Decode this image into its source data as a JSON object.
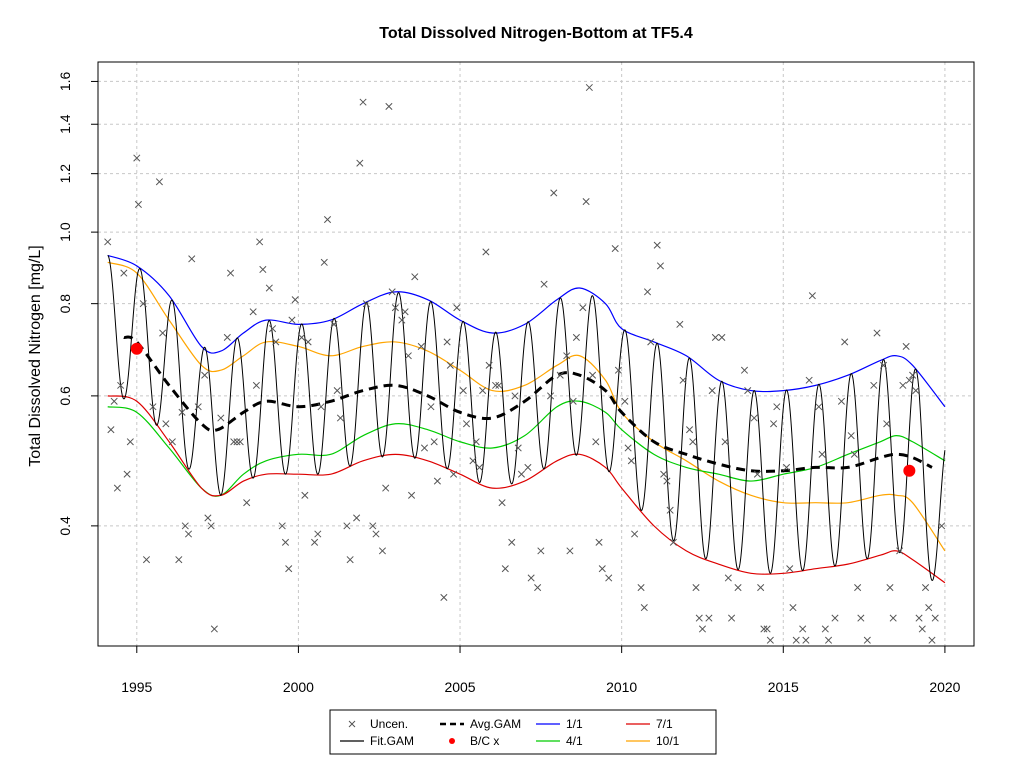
{
  "chart_data": {
    "type": "line",
    "title": "Total Dissolved Nitrogen-Bottom at TF5.4",
    "xlabel": "",
    "ylabel": "Total Dissolved Nitrogen [mg/L]",
    "y_scale": "log",
    "xlim": [
      1993.8,
      2020.9
    ],
    "ylim": [
      0.275,
      1.7
    ],
    "x_ticks": [
      1995,
      2000,
      2005,
      2010,
      2015,
      2020
    ],
    "y_ticks": [
      0.4,
      0.6,
      0.8,
      1.0,
      1.2,
      1.4,
      1.6
    ],
    "grid": true,
    "legend_position": "bottom",
    "colors": {
      "uncen": "#555555",
      "fit": "#000000",
      "avg": "#000000",
      "bc": "#ff0000",
      "p1": "#0000ff",
      "p4": "#00cc00",
      "p7": "#dd0000",
      "p10": "#ffa500"
    },
    "legend": [
      {
        "key": "uncen",
        "label": "Uncen."
      },
      {
        "key": "fit",
        "label": "Fit.GAM"
      },
      {
        "key": "avg",
        "label": "Avg.GAM"
      },
      {
        "key": "bc",
        "label": "B/C x"
      },
      {
        "key": "p1",
        "label": "1/1"
      },
      {
        "key": "p4",
        "label": "4/1"
      },
      {
        "key": "p7",
        "label": "7/1"
      },
      {
        "key": "p10",
        "label": "10/1"
      }
    ],
    "series": [
      {
        "key": "p1",
        "name": "1/1",
        "x": [
          1994.1,
          1995.0,
          1996.0,
          1997.0,
          1997.6,
          1998.3,
          1999.0,
          2000.0,
          2001.0,
          2002.0,
          2003.0,
          2004.0,
          2005.0,
          2006.0,
          2007.0,
          2008.0,
          2008.7,
          2009.5,
          2010.0,
          2011.0,
          2012.0,
          2013.0,
          2014.0,
          2015.0,
          2016.0,
          2017.0,
          2018.0,
          2018.5,
          2019.0,
          2020.0
        ],
        "y": [
          0.93,
          0.9,
          0.82,
          0.7,
          0.69,
          0.73,
          0.76,
          0.75,
          0.76,
          0.8,
          0.83,
          0.81,
          0.76,
          0.73,
          0.75,
          0.81,
          0.84,
          0.8,
          0.74,
          0.71,
          0.68,
          0.63,
          0.61,
          0.61,
          0.62,
          0.64,
          0.67,
          0.68,
          0.66,
          0.58
        ]
      },
      {
        "key": "p10",
        "name": "10/1",
        "x": [
          1994.1,
          1995.0,
          1996.0,
          1997.0,
          1997.6,
          1998.3,
          1999.0,
          2000.0,
          2001.0,
          2002.0,
          2003.0,
          2004.0,
          2005.0,
          2006.0,
          2007.0,
          2008.0,
          2008.7,
          2009.5,
          2010.0,
          2011.0,
          2012.0,
          2013.0,
          2014.0,
          2015.0,
          2016.0,
          2017.0,
          2018.0,
          2018.5,
          2019.0,
          2020.0
        ],
        "y": [
          0.91,
          0.88,
          0.76,
          0.66,
          0.65,
          0.68,
          0.71,
          0.7,
          0.68,
          0.7,
          0.71,
          0.69,
          0.65,
          0.61,
          0.62,
          0.66,
          0.68,
          0.63,
          0.57,
          0.52,
          0.49,
          0.46,
          0.44,
          0.43,
          0.43,
          0.43,
          0.44,
          0.44,
          0.43,
          0.37
        ]
      },
      {
        "key": "p4",
        "name": "4/1",
        "x": [
          1994.1,
          1995.0,
          1996.0,
          1997.0,
          1997.6,
          1998.3,
          1999.0,
          2000.0,
          2001.0,
          2002.0,
          2003.0,
          2004.0,
          2005.0,
          2006.0,
          2007.0,
          2008.0,
          2008.7,
          2009.5,
          2010.0,
          2011.0,
          2012.0,
          2013.0,
          2014.0,
          2015.0,
          2016.0,
          2017.0,
          2018.0,
          2018.5,
          2019.0,
          2020.0
        ],
        "y": [
          0.58,
          0.57,
          0.51,
          0.45,
          0.44,
          0.47,
          0.49,
          0.5,
          0.5,
          0.53,
          0.55,
          0.54,
          0.52,
          0.51,
          0.53,
          0.58,
          0.59,
          0.57,
          0.54,
          0.5,
          0.48,
          0.47,
          0.46,
          0.47,
          0.48,
          0.5,
          0.52,
          0.53,
          0.52,
          0.49
        ]
      },
      {
        "key": "p7",
        "name": "7/1",
        "x": [
          1994.1,
          1995.0,
          1996.0,
          1997.0,
          1997.6,
          1998.3,
          1999.0,
          2000.0,
          2001.0,
          2002.0,
          2003.0,
          2004.0,
          2005.0,
          2006.0,
          2007.0,
          2008.0,
          2008.7,
          2009.5,
          2010.0,
          2011.0,
          2012.0,
          2013.0,
          2014.0,
          2015.0,
          2016.0,
          2017.0,
          2018.0,
          2018.5,
          2019.0,
          2020.0
        ],
        "y": [
          0.6,
          0.59,
          0.52,
          0.45,
          0.44,
          0.46,
          0.47,
          0.47,
          0.47,
          0.49,
          0.5,
          0.49,
          0.47,
          0.45,
          0.46,
          0.49,
          0.5,
          0.48,
          0.45,
          0.4,
          0.37,
          0.355,
          0.345,
          0.345,
          0.35,
          0.355,
          0.365,
          0.37,
          0.36,
          0.335
        ]
      },
      {
        "key": "avg",
        "name": "Avg.GAM",
        "dashed": true,
        "x": [
          1994.6,
          1995.0,
          1996.0,
          1997.0,
          1997.5,
          1998.3,
          1999.0,
          2000.0,
          2001.0,
          2002.0,
          2003.0,
          2004.0,
          2005.0,
          2006.0,
          2007.0,
          2008.0,
          2008.7,
          2009.5,
          2010.0,
          2011.0,
          2012.0,
          2013.0,
          2014.0,
          2015.0,
          2016.0,
          2017.0,
          2018.0,
          2018.5,
          2019.0,
          2019.6
        ],
        "y": [
          0.72,
          0.71,
          0.62,
          0.55,
          0.54,
          0.57,
          0.59,
          0.58,
          0.59,
          0.61,
          0.62,
          0.6,
          0.57,
          0.56,
          0.59,
          0.64,
          0.64,
          0.61,
          0.57,
          0.52,
          0.5,
          0.485,
          0.475,
          0.475,
          0.48,
          0.48,
          0.495,
          0.5,
          0.495,
          0.48
        ]
      }
    ],
    "fit_gam": {
      "name": "Fit.GAM",
      "x_start": 1994.1,
      "x_end": 2020.0,
      "annual_peak_fraction": 0.1,
      "upper_key": "p1",
      "lower_key": "p7",
      "end_upper": 0.53,
      "end_lower": 0.33
    },
    "bc_points": [
      {
        "x": 1995.0,
        "y": 0.695
      },
      {
        "x": 2018.9,
        "y": 0.475
      }
    ],
    "observations": [
      {
        "x": 1994.1,
        "y": 0.97
      },
      {
        "x": 1994.2,
        "y": 0.54
      },
      {
        "x": 1994.3,
        "y": 0.59
      },
      {
        "x": 1994.4,
        "y": 0.45
      },
      {
        "x": 1994.5,
        "y": 0.62
      },
      {
        "x": 1994.6,
        "y": 0.88
      },
      {
        "x": 1994.7,
        "y": 0.47
      },
      {
        "x": 1994.8,
        "y": 0.52
      },
      {
        "x": 1995.0,
        "y": 1.26
      },
      {
        "x": 1995.05,
        "y": 1.09
      },
      {
        "x": 1995.2,
        "y": 0.8
      },
      {
        "x": 1995.3,
        "y": 0.36
      },
      {
        "x": 1995.5,
        "y": 0.58
      },
      {
        "x": 1995.7,
        "y": 1.17
      },
      {
        "x": 1995.8,
        "y": 0.73
      },
      {
        "x": 1995.9,
        "y": 0.55
      },
      {
        "x": 1996.1,
        "y": 0.52
      },
      {
        "x": 1996.3,
        "y": 0.36
      },
      {
        "x": 1996.4,
        "y": 0.57
      },
      {
        "x": 1996.5,
        "y": 0.4
      },
      {
        "x": 1996.6,
        "y": 0.39
      },
      {
        "x": 1996.7,
        "y": 0.92
      },
      {
        "x": 1996.9,
        "y": 0.58
      },
      {
        "x": 1997.1,
        "y": 0.64
      },
      {
        "x": 1997.2,
        "y": 0.41
      },
      {
        "x": 1997.3,
        "y": 0.4
      },
      {
        "x": 1997.4,
        "y": 0.29
      },
      {
        "x": 1997.6,
        "y": 0.56
      },
      {
        "x": 1997.8,
        "y": 0.72
      },
      {
        "x": 1997.9,
        "y": 0.88
      },
      {
        "x": 1998.0,
        "y": 0.52
      },
      {
        "x": 1998.1,
        "y": 0.52
      },
      {
        "x": 1998.2,
        "y": 0.52
      },
      {
        "x": 1998.4,
        "y": 0.43
      },
      {
        "x": 1998.6,
        "y": 0.78
      },
      {
        "x": 1998.7,
        "y": 0.62
      },
      {
        "x": 1998.8,
        "y": 0.97
      },
      {
        "x": 1998.9,
        "y": 0.89
      },
      {
        "x": 1999.1,
        "y": 0.84
      },
      {
        "x": 1999.2,
        "y": 0.74
      },
      {
        "x": 1999.3,
        "y": 0.71
      },
      {
        "x": 1999.5,
        "y": 0.4
      },
      {
        "x": 1999.6,
        "y": 0.38
      },
      {
        "x": 1999.7,
        "y": 0.35
      },
      {
        "x": 1999.8,
        "y": 0.76
      },
      {
        "x": 1999.9,
        "y": 0.81
      },
      {
        "x": 2000.1,
        "y": 0.72
      },
      {
        "x": 2000.2,
        "y": 0.44
      },
      {
        "x": 2000.3,
        "y": 0.71
      },
      {
        "x": 2000.5,
        "y": 0.38
      },
      {
        "x": 2000.6,
        "y": 0.39
      },
      {
        "x": 2000.7,
        "y": 0.58
      },
      {
        "x": 2000.8,
        "y": 0.91
      },
      {
        "x": 2000.9,
        "y": 1.04
      },
      {
        "x": 2001.1,
        "y": 0.75
      },
      {
        "x": 2001.2,
        "y": 0.61
      },
      {
        "x": 2001.3,
        "y": 0.56
      },
      {
        "x": 2001.5,
        "y": 0.4
      },
      {
        "x": 2001.6,
        "y": 0.36
      },
      {
        "x": 2001.8,
        "y": 0.41
      },
      {
        "x": 2001.9,
        "y": 1.24
      },
      {
        "x": 2002.0,
        "y": 1.5
      },
      {
        "x": 2002.1,
        "y": 0.8
      },
      {
        "x": 2002.3,
        "y": 0.4
      },
      {
        "x": 2002.4,
        "y": 0.39
      },
      {
        "x": 2002.6,
        "y": 0.37
      },
      {
        "x": 2002.7,
        "y": 0.45
      },
      {
        "x": 2002.8,
        "y": 1.48
      },
      {
        "x": 2002.9,
        "y": 0.83
      },
      {
        "x": 2003.0,
        "y": 0.79
      },
      {
        "x": 2003.2,
        "y": 0.76
      },
      {
        "x": 2003.3,
        "y": 0.78
      },
      {
        "x": 2003.4,
        "y": 0.68
      },
      {
        "x": 2003.5,
        "y": 0.44
      },
      {
        "x": 2003.6,
        "y": 0.87
      },
      {
        "x": 2003.8,
        "y": 0.7
      },
      {
        "x": 2003.9,
        "y": 0.51
      },
      {
        "x": 2004.1,
        "y": 0.58
      },
      {
        "x": 2004.2,
        "y": 0.52
      },
      {
        "x": 2004.3,
        "y": 0.46
      },
      {
        "x": 2004.5,
        "y": 0.32
      },
      {
        "x": 2004.6,
        "y": 0.71
      },
      {
        "x": 2004.7,
        "y": 0.66
      },
      {
        "x": 2004.8,
        "y": 0.47
      },
      {
        "x": 2004.9,
        "y": 0.79
      },
      {
        "x": 2005.1,
        "y": 0.61
      },
      {
        "x": 2005.2,
        "y": 0.55
      },
      {
        "x": 2005.4,
        "y": 0.49
      },
      {
        "x": 2005.5,
        "y": 0.52
      },
      {
        "x": 2005.6,
        "y": 0.48
      },
      {
        "x": 2005.7,
        "y": 0.61
      },
      {
        "x": 2005.8,
        "y": 0.94
      },
      {
        "x": 2005.9,
        "y": 0.66
      },
      {
        "x": 2006.1,
        "y": 0.62
      },
      {
        "x": 2006.2,
        "y": 0.62
      },
      {
        "x": 2006.3,
        "y": 0.43
      },
      {
        "x": 2006.4,
        "y": 0.35
      },
      {
        "x": 2006.6,
        "y": 0.38
      },
      {
        "x": 2006.7,
        "y": 0.6
      },
      {
        "x": 2006.8,
        "y": 0.51
      },
      {
        "x": 2006.9,
        "y": 0.47
      },
      {
        "x": 2007.1,
        "y": 0.48
      },
      {
        "x": 2007.2,
        "y": 0.34
      },
      {
        "x": 2007.4,
        "y": 0.33
      },
      {
        "x": 2007.5,
        "y": 0.37
      },
      {
        "x": 2007.6,
        "y": 0.85
      },
      {
        "x": 2007.8,
        "y": 0.6
      },
      {
        "x": 2007.9,
        "y": 1.13
      },
      {
        "x": 2008.1,
        "y": 0.64
      },
      {
        "x": 2008.3,
        "y": 0.68
      },
      {
        "x": 2008.4,
        "y": 0.37
      },
      {
        "x": 2008.5,
        "y": 0.59
      },
      {
        "x": 2008.6,
        "y": 0.72
      },
      {
        "x": 2008.8,
        "y": 0.79
      },
      {
        "x": 2008.9,
        "y": 1.1
      },
      {
        "x": 2009.0,
        "y": 1.57
      },
      {
        "x": 2009.1,
        "y": 0.64
      },
      {
        "x": 2009.2,
        "y": 0.52
      },
      {
        "x": 2009.3,
        "y": 0.38
      },
      {
        "x": 2009.4,
        "y": 0.35
      },
      {
        "x": 2009.6,
        "y": 0.34
      },
      {
        "x": 2009.8,
        "y": 0.95
      },
      {
        "x": 2009.9,
        "y": 0.65
      },
      {
        "x": 2010.1,
        "y": 0.59
      },
      {
        "x": 2010.2,
        "y": 0.51
      },
      {
        "x": 2010.3,
        "y": 0.49
      },
      {
        "x": 2010.4,
        "y": 0.39
      },
      {
        "x": 2010.6,
        "y": 0.33
      },
      {
        "x": 2010.7,
        "y": 0.31
      },
      {
        "x": 2010.8,
        "y": 0.83
      },
      {
        "x": 2010.9,
        "y": 0.71
      },
      {
        "x": 2011.1,
        "y": 0.96
      },
      {
        "x": 2011.2,
        "y": 0.9
      },
      {
        "x": 2011.3,
        "y": 0.47
      },
      {
        "x": 2011.4,
        "y": 0.46
      },
      {
        "x": 2011.5,
        "y": 0.42
      },
      {
        "x": 2011.6,
        "y": 0.38
      },
      {
        "x": 2011.8,
        "y": 0.75
      },
      {
        "x": 2011.9,
        "y": 0.63
      },
      {
        "x": 2012.1,
        "y": 0.54
      },
      {
        "x": 2012.2,
        "y": 0.52
      },
      {
        "x": 2012.3,
        "y": 0.33
      },
      {
        "x": 2012.4,
        "y": 0.3
      },
      {
        "x": 2012.5,
        "y": 0.29
      },
      {
        "x": 2012.7,
        "y": 0.3
      },
      {
        "x": 2012.8,
        "y": 0.61
      },
      {
        "x": 2012.9,
        "y": 0.72
      },
      {
        "x": 2013.1,
        "y": 0.72
      },
      {
        "x": 2013.2,
        "y": 0.52
      },
      {
        "x": 2013.3,
        "y": 0.34
      },
      {
        "x": 2013.4,
        "y": 0.3
      },
      {
        "x": 2013.6,
        "y": 0.33
      },
      {
        "x": 2013.8,
        "y": 0.65
      },
      {
        "x": 2013.9,
        "y": 0.61
      },
      {
        "x": 2014.1,
        "y": 0.56
      },
      {
        "x": 2014.2,
        "y": 0.47
      },
      {
        "x": 2014.3,
        "y": 0.33
      },
      {
        "x": 2014.4,
        "y": 0.29
      },
      {
        "x": 2014.5,
        "y": 0.29
      },
      {
        "x": 2014.6,
        "y": 0.28
      },
      {
        "x": 2014.7,
        "y": 0.55
      },
      {
        "x": 2014.8,
        "y": 0.58
      },
      {
        "x": 2015.1,
        "y": 0.48
      },
      {
        "x": 2015.2,
        "y": 0.35
      },
      {
        "x": 2015.3,
        "y": 0.31
      },
      {
        "x": 2015.4,
        "y": 0.28
      },
      {
        "x": 2015.6,
        "y": 0.29
      },
      {
        "x": 2015.7,
        "y": 0.28
      },
      {
        "x": 2015.8,
        "y": 0.63
      },
      {
        "x": 2015.9,
        "y": 0.82
      },
      {
        "x": 2016.1,
        "y": 0.58
      },
      {
        "x": 2016.2,
        "y": 0.5
      },
      {
        "x": 2016.3,
        "y": 0.29
      },
      {
        "x": 2016.4,
        "y": 0.28
      },
      {
        "x": 2016.6,
        "y": 0.3
      },
      {
        "x": 2016.8,
        "y": 0.59
      },
      {
        "x": 2016.9,
        "y": 0.71
      },
      {
        "x": 2017.1,
        "y": 0.53
      },
      {
        "x": 2017.2,
        "y": 0.5
      },
      {
        "x": 2017.3,
        "y": 0.33
      },
      {
        "x": 2017.4,
        "y": 0.3
      },
      {
        "x": 2017.6,
        "y": 0.28
      },
      {
        "x": 2017.8,
        "y": 0.62
      },
      {
        "x": 2017.9,
        "y": 0.73
      },
      {
        "x": 2018.1,
        "y": 0.66
      },
      {
        "x": 2018.2,
        "y": 0.55
      },
      {
        "x": 2018.3,
        "y": 0.33
      },
      {
        "x": 2018.4,
        "y": 0.3
      },
      {
        "x": 2018.6,
        "y": 0.37
      },
      {
        "x": 2018.7,
        "y": 0.62
      },
      {
        "x": 2018.8,
        "y": 0.7
      },
      {
        "x": 2018.9,
        "y": 0.63
      },
      {
        "x": 2019.0,
        "y": 0.64
      },
      {
        "x": 2019.1,
        "y": 0.61
      },
      {
        "x": 2019.2,
        "y": 0.3
      },
      {
        "x": 2019.3,
        "y": 0.29
      },
      {
        "x": 2019.4,
        "y": 0.33
      },
      {
        "x": 2019.5,
        "y": 0.31
      },
      {
        "x": 2019.6,
        "y": 0.28
      },
      {
        "x": 2019.7,
        "y": 0.3
      },
      {
        "x": 2019.9,
        "y": 0.4
      }
    ]
  }
}
